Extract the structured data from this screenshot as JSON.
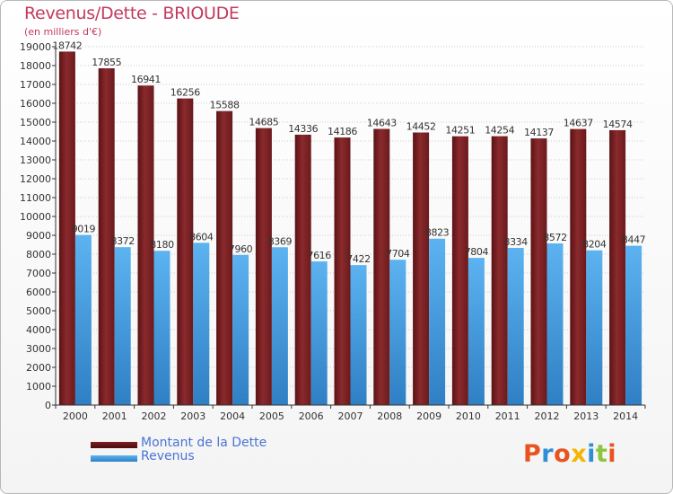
{
  "header": {
    "title": "Revenus/Dette - BRIOUDE",
    "subtitle": "(en milliers d'€)"
  },
  "logo": {
    "text": "Proxiti",
    "colors": [
      "#e8531f",
      "#2e8ed6",
      "#e8531f",
      "#f2b705",
      "#2e8ed6",
      "#8cc63f",
      "#e8531f"
    ]
  },
  "colors": {
    "dette": "#7a1f22",
    "revenus": "#4ea6ea",
    "axis": "#333333",
    "grid": "#cccccc"
  },
  "chart_data": {
    "type": "bar",
    "title": "Revenus/Dette - BRIOUDE",
    "subtitle": "(en milliers d'€)",
    "categories": [
      "2000",
      "2001",
      "2002",
      "2003",
      "2004",
      "2005",
      "2006",
      "2007",
      "2008",
      "2009",
      "2010",
      "2011",
      "2012",
      "2013",
      "2014"
    ],
    "series": [
      {
        "name": "Montant de la Dette",
        "values": [
          18742,
          17855,
          16941,
          16256,
          15588,
          14685,
          14336,
          14186,
          14643,
          14452,
          14251,
          14254,
          14137,
          14637,
          14574
        ]
      },
      {
        "name": "Revenus",
        "values": [
          9019,
          8372,
          8180,
          8604,
          7960,
          8369,
          7616,
          7422,
          7704,
          8823,
          7804,
          8334,
          8572,
          8204,
          8447
        ]
      }
    ],
    "ylim": [
      0,
      19000
    ],
    "ytick_step": 1000,
    "grid": true,
    "legend": "bottom-left",
    "data_labels": true
  }
}
